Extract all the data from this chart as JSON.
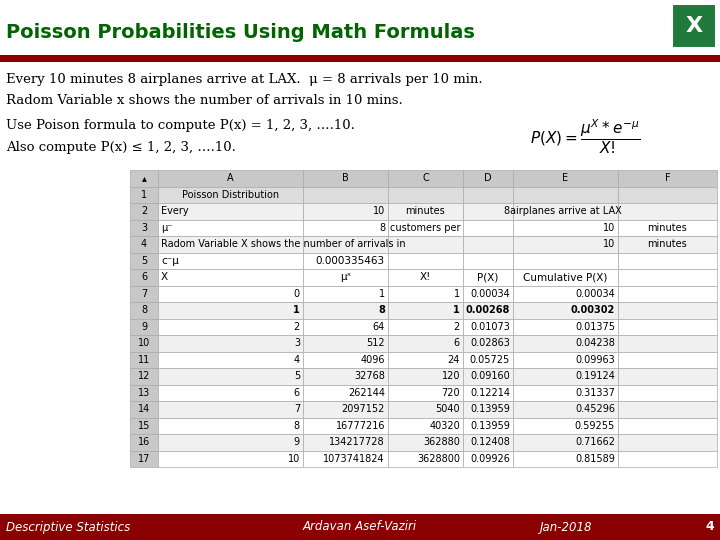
{
  "title": "Poisson Probabilities Using Math Formulas",
  "title_color": "#006400",
  "header_bar_color": "#8B0000",
  "body_text1": "Every 10 minutes 8 airplanes arrive at LAX.  μ = 8 arrivals per 10 min.",
  "body_text2": "Radom Variable x shows the number of arrivals in 10 mins.",
  "body_text3": "Use Poison formula to compute P(x) = 1, 2, 3, ….10.",
  "body_text4": "Also compute P(x) ≤ 1, 2, 3, ….10.",
  "footer_left": "Descriptive Statistics",
  "footer_center": "Ardavan Asef-Vaziri",
  "footer_right": "Jan-2018",
  "footer_page": "4",
  "table_rows": [
    [
      "1",
      "Poisson Distribution",
      "",
      "",
      "",
      "",
      ""
    ],
    [
      "2",
      "Every",
      "10",
      "minutes",
      "8",
      "airplanes arrive at LAX",
      ""
    ],
    [
      "3",
      "μ⁻",
      "8",
      "customers per",
      "",
      "10",
      "minutes"
    ],
    [
      "4",
      "Radom Variable X shows the number of arrivals in",
      "",
      "",
      "",
      "10",
      "minutes"
    ],
    [
      "5",
      "c⁻μ",
      "0.000335463",
      "",
      "",
      "",
      ""
    ],
    [
      "6",
      "X",
      "μˣ",
      "X!",
      "P(X)",
      "Cumulative P(X)",
      ""
    ],
    [
      "7",
      "0",
      "1",
      "1",
      "0.00034",
      "0.00034",
      ""
    ],
    [
      "8",
      "1",
      "8",
      "1",
      "0.00268",
      "0.00302",
      ""
    ],
    [
      "9",
      "2",
      "64",
      "2",
      "0.01073",
      "0.01375",
      ""
    ],
    [
      "10",
      "3",
      "512",
      "6",
      "0.02863",
      "0.04238",
      ""
    ],
    [
      "11",
      "4",
      "4096",
      "24",
      "0.05725",
      "0.09963",
      ""
    ],
    [
      "12",
      "5",
      "32768",
      "120",
      "0.09160",
      "0.19124",
      ""
    ],
    [
      "13",
      "6",
      "262144",
      "720",
      "0.12214",
      "0.31337",
      ""
    ],
    [
      "14",
      "7",
      "2097152",
      "5040",
      "0.13959",
      "0.45296",
      ""
    ],
    [
      "15",
      "8",
      "16777216",
      "40320",
      "0.13959",
      "0.59255",
      ""
    ],
    [
      "16",
      "9",
      "134217728",
      "362880",
      "0.12408",
      "0.71662",
      ""
    ],
    [
      "17",
      "10",
      "1073741824",
      "3628800",
      "0.09926",
      "0.81589",
      ""
    ]
  ],
  "bg_color": "#ffffff",
  "excel_icon_color": "#1F7A3C",
  "table_header_bg": "#C8C8C8",
  "table_border_color": "#AAAAAA",
  "col_labels": [
    "▴",
    "A",
    "B",
    "C",
    "D",
    "E",
    "F"
  ]
}
